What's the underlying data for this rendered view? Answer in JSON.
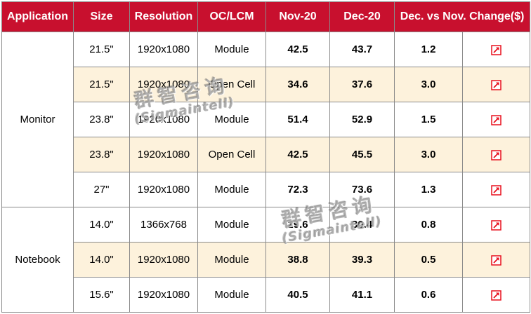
{
  "table": {
    "headers": [
      "Application",
      "Size",
      "Resolution",
      "OC/LCM",
      "Nov-20",
      "Dec-20",
      "Dec. vs Nov. Change($)",
      ""
    ],
    "groups": [
      {
        "application": "Monitor",
        "rows": [
          {
            "size": "21.5\"",
            "resolution": "1920x1080",
            "type": "Module",
            "nov": "42.5",
            "dec": "43.7",
            "change": "1.2",
            "trend": "up-arrow-icon"
          },
          {
            "size": "21.5\"",
            "resolution": "1920x1080",
            "type": "Open Cell",
            "nov": "34.6",
            "dec": "37.6",
            "change": "3.0",
            "trend": "up-arrow-icon"
          },
          {
            "size": "23.8\"",
            "resolution": "1920x1080",
            "type": "Module",
            "nov": "51.4",
            "dec": "52.9",
            "change": "1.5",
            "trend": "up-arrow-icon"
          },
          {
            "size": "23.8\"",
            "resolution": "1920x1080",
            "type": "Open Cell",
            "nov": "42.5",
            "dec": "45.5",
            "change": "3.0",
            "trend": "up-arrow-icon"
          },
          {
            "size": "27\"",
            "resolution": "1920x1080",
            "type": "Module",
            "nov": "72.3",
            "dec": "73.6",
            "change": "1.3",
            "trend": "up-arrow-icon"
          }
        ]
      },
      {
        "application": "Notebook",
        "rows": [
          {
            "size": "14.0\"",
            "resolution": "1366x768",
            "type": "Module",
            "nov": "29.6",
            "dec": "30.4",
            "change": "0.8",
            "trend": "up-arrow-icon"
          },
          {
            "size": "14.0\"",
            "resolution": "1920x1080",
            "type": "Module",
            "nov": "38.8",
            "dec": "39.3",
            "change": "0.5",
            "trend": "up-arrow-icon"
          },
          {
            "size": "15.6\"",
            "resolution": "1920x1080",
            "type": "Module",
            "nov": "40.5",
            "dec": "41.1",
            "change": "0.6",
            "trend": "up-arrow-icon"
          }
        ]
      }
    ]
  },
  "watermark": {
    "chinese": "群智咨询",
    "english": "(Sigmaintell)"
  },
  "colors": {
    "header_bg": "#c8102e",
    "header_text": "#ffffff",
    "row_shade": "#fdf2dc",
    "arrow": "#e8101e",
    "grid": "#8a8a8a"
  }
}
